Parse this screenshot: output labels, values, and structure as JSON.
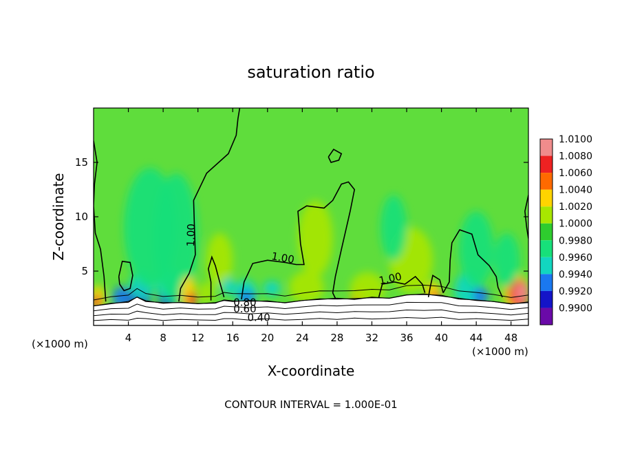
{
  "chart_data": {
    "type": "heatmap",
    "title": "saturation ratio",
    "xlabel": "X-coordinate",
    "ylabel": "Z-coordinate",
    "x_unit_left": "(×1000 m)",
    "x_unit_right": "(×1000 m)",
    "footer": "CONTOUR INTERVAL = 1.000E-01",
    "xlim": [
      0,
      50
    ],
    "ylim": [
      0,
      20
    ],
    "x_ticks": [
      4,
      8,
      12,
      16,
      20,
      24,
      28,
      32,
      36,
      40,
      44,
      48
    ],
    "y_ticks": [
      5,
      10,
      15
    ],
    "colorbar": {
      "labels": [
        "1.0100",
        "1.0080",
        "1.0060",
        "1.0040",
        "1.0020",
        "1.0000",
        "0.9980",
        "0.9960",
        "0.9940",
        "0.9920",
        "0.9900"
      ],
      "colors": [
        "#f08c8c",
        "#ee2222",
        "#ff6a00",
        "#ffd400",
        "#a8e600",
        "#2ecc2e",
        "#17e07a",
        "#12d6c0",
        "#1a78f0",
        "#1414c8",
        "#6a0aa8"
      ]
    },
    "contour_labels": [
      {
        "text": "1.00",
        "x": 11.6,
        "z": 8.3,
        "rotate": -88
      },
      {
        "text": "1.00",
        "x": 21.7,
        "z": 5.9,
        "rotate": 10
      },
      {
        "text": "1.00",
        "x": 34.2,
        "z": 4.0,
        "rotate": -12
      },
      {
        "text": "0.80",
        "x": 17.4,
        "z": 1.8,
        "rotate": 0
      },
      {
        "text": "0.60",
        "x": 17.4,
        "z": 1.2,
        "rotate": 0
      },
      {
        "text": "0.40",
        "x": 19.0,
        "z": 0.4,
        "rotate": 0
      }
    ],
    "colors": {
      "background_field": "#5fdd3c",
      "terrain": "#ffffff",
      "contour": "#000000"
    }
  }
}
